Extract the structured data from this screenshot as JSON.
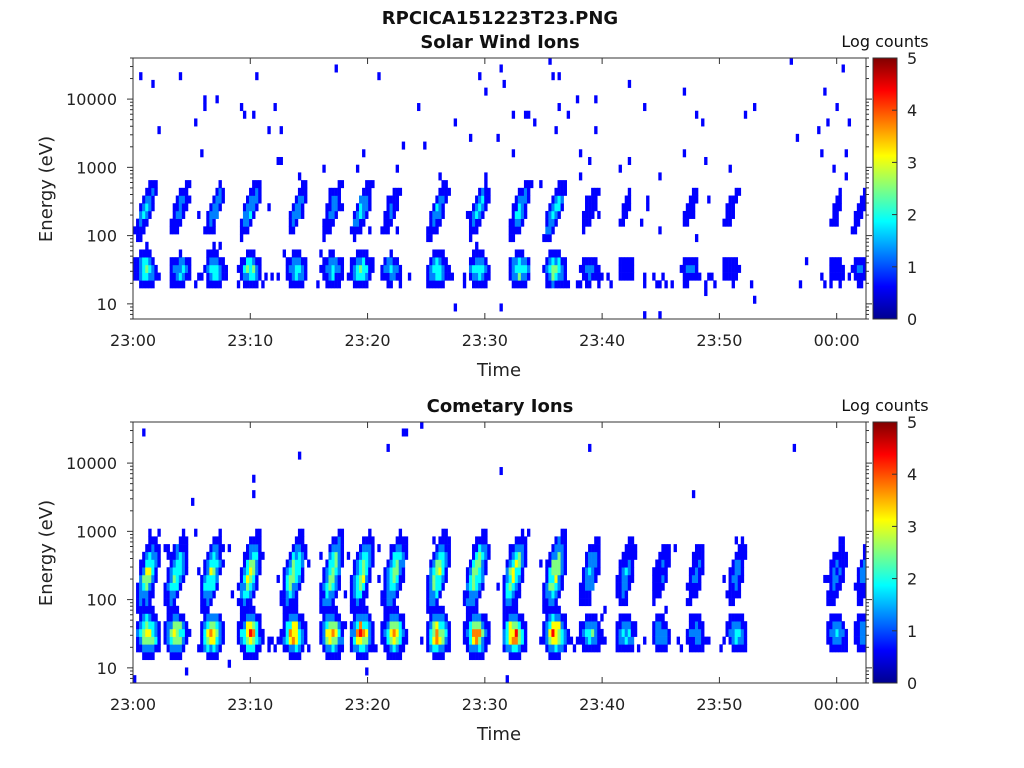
{
  "figure_title": "RPCICA151223T23.PNG",
  "colormap": [
    "#00008f",
    "#0000ff",
    "#0080ff",
    "#00ffff",
    "#80ff80",
    "#ffff00",
    "#ff8000",
    "#ff0000",
    "#800000"
  ],
  "chart_data": [
    {
      "type": "heatmap",
      "title": "Solar Wind Ions",
      "xlabel": "Time",
      "ylabel": "Energy (eV)",
      "x_ticks": [
        "23:00",
        "23:10",
        "23:20",
        "23:30",
        "23:40",
        "23:50",
        "00:00"
      ],
      "x_tick_minutes": [
        0,
        10,
        20,
        30,
        40,
        50,
        60
      ],
      "xlim_minutes": [
        0,
        62.5
      ],
      "y_scale": "log",
      "y_ticks": [
        "10",
        "100",
        "1000",
        "10000"
      ],
      "y_tick_values": [
        10,
        100,
        1000,
        10000
      ],
      "ylim": [
        6,
        40000
      ],
      "colorbar": {
        "label": "Log counts",
        "ticks": [
          "0",
          "1",
          "2",
          "3",
          "4",
          "5"
        ],
        "range": [
          0,
          5
        ]
      },
      "data_gap_minutes": [
        53.2,
        56.0
      ],
      "bursts": [
        {
          "t": 0.6,
          "peak": 2.2
        },
        {
          "t": 3.5,
          "peak": 1.8
        },
        {
          "t": 6.5,
          "peak": 1.9
        },
        {
          "t": 9.5,
          "peak": 2.4
        },
        {
          "t": 13.5,
          "peak": 1.8
        },
        {
          "t": 16.5,
          "peak": 1.8
        },
        {
          "t": 19.0,
          "peak": 2.4
        },
        {
          "t": 21.5,
          "peak": 1.5
        },
        {
          "t": 25.5,
          "peak": 2.2
        },
        {
          "t": 29.0,
          "peak": 2.2
        },
        {
          "t": 32.5,
          "peak": 2.3
        },
        {
          "t": 35.5,
          "peak": 2.8
        },
        {
          "t": 38.5,
          "peak": 1.2
        },
        {
          "t": 41.5,
          "peak": 1.0
        },
        {
          "t": 47.0,
          "peak": 1.0
        },
        {
          "t": 50.5,
          "peak": 1.0
        },
        {
          "t": 59.5,
          "peak": 0.9
        },
        {
          "t": 61.5,
          "peak": 0.9
        }
      ]
    },
    {
      "type": "heatmap",
      "title": "Cometary Ions",
      "xlabel": "Time",
      "ylabel": "Energy (eV)",
      "x_ticks": [
        "23:00",
        "23:10",
        "23:20",
        "23:30",
        "23:40",
        "23:50",
        "00:00"
      ],
      "x_tick_minutes": [
        0,
        10,
        20,
        30,
        40,
        50,
        60
      ],
      "xlim_minutes": [
        0,
        62.5
      ],
      "y_scale": "log",
      "y_ticks": [
        "10",
        "100",
        "1000",
        "10000"
      ],
      "y_tick_values": [
        10,
        100,
        1000,
        10000
      ],
      "ylim": [
        6,
        40000
      ],
      "colorbar": {
        "label": "Log counts",
        "ticks": [
          "0",
          "1",
          "2",
          "3",
          "4",
          "5"
        ],
        "range": [
          0,
          5
        ]
      },
      "data_gap_minutes": [
        53.2,
        56.0
      ],
      "bursts": [
        {
          "t": 0.8,
          "peak": 3.5
        },
        {
          "t": 3.2,
          "peak": 3.0
        },
        {
          "t": 6.2,
          "peak": 3.4
        },
        {
          "t": 9.5,
          "peak": 3.8
        },
        {
          "t": 13.2,
          "peak": 3.6
        },
        {
          "t": 16.5,
          "peak": 3.6
        },
        {
          "t": 19.0,
          "peak": 3.9
        },
        {
          "t": 21.8,
          "peak": 3.4
        },
        {
          "t": 25.5,
          "peak": 3.8
        },
        {
          "t": 28.8,
          "peak": 3.8
        },
        {
          "t": 32.0,
          "peak": 3.8
        },
        {
          "t": 35.5,
          "peak": 4.0
        },
        {
          "t": 38.5,
          "peak": 2.0
        },
        {
          "t": 41.5,
          "peak": 1.8
        },
        {
          "t": 44.5,
          "peak": 1.4
        },
        {
          "t": 47.5,
          "peak": 1.4
        },
        {
          "t": 51.0,
          "peak": 1.6
        },
        {
          "t": 59.5,
          "peak": 1.6
        },
        {
          "t": 61.8,
          "peak": 1.4
        }
      ]
    }
  ]
}
